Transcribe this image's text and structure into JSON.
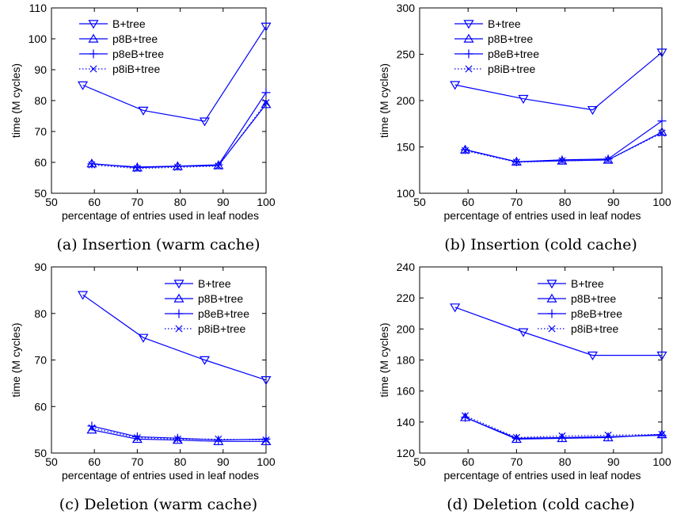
{
  "chart_data": [
    {
      "type": "line",
      "caption": "(a) Insertion (warm cache)",
      "xlabel": "percentage of entries used in leaf nodes",
      "ylabel": "time (M cycles)",
      "xlim": [
        50,
        100
      ],
      "ylim": [
        50,
        110
      ],
      "xticks": [
        50,
        60,
        70,
        80,
        90,
        100
      ],
      "yticks": [
        50,
        60,
        70,
        80,
        90,
        100,
        110
      ],
      "grid": false,
      "legend": "top-center",
      "color": "#0000ff",
      "series": [
        {
          "name": "B+tree",
          "marker": "triangle-down",
          "dash": "solid",
          "x": [
            57.3,
            71.4,
            85.7,
            100
          ],
          "y": [
            85,
            76.8,
            73.3,
            104
          ]
        },
        {
          "name": "p8B+tree",
          "marker": "triangle-up",
          "dash": "solid",
          "x": [
            59.4,
            70,
            79.4,
            88.9,
            100
          ],
          "y": [
            59.6,
            58.3,
            58.7,
            59,
            78.8
          ]
        },
        {
          "name": "p8eB+tree",
          "marker": "plus",
          "dash": "solid",
          "x": [
            59.4,
            70,
            79.4,
            88.9,
            100
          ],
          "y": [
            59.5,
            58.5,
            58.8,
            59.2,
            82.6
          ]
        },
        {
          "name": "p8iB+tree",
          "marker": "x",
          "dash": "dotted",
          "x": [
            59.4,
            70,
            79.4,
            88.9,
            100
          ],
          "y": [
            59.2,
            58,
            58.4,
            58.8,
            79.3
          ]
        }
      ]
    },
    {
      "type": "line",
      "caption": "(b) Insertion (cold cache)",
      "xlabel": "percentage of entries used in leaf nodes",
      "ylabel": "time (M cycles)",
      "xlim": [
        50,
        100
      ],
      "ylim": [
        100,
        300
      ],
      "xticks": [
        50,
        60,
        70,
        80,
        90,
        100
      ],
      "yticks": [
        100,
        150,
        200,
        250,
        300
      ],
      "grid": false,
      "legend": "top-center",
      "color": "#0000ff",
      "series": [
        {
          "name": "B+tree",
          "marker": "triangle-down",
          "dash": "solid",
          "x": [
            57.3,
            71.4,
            85.7,
            100
          ],
          "y": [
            217,
            202,
            190,
            252
          ]
        },
        {
          "name": "p8B+tree",
          "marker": "triangle-up",
          "dash": "solid",
          "x": [
            59.4,
            70,
            79.4,
            88.9,
            100
          ],
          "y": [
            147,
            134,
            135,
            136,
            166
          ]
        },
        {
          "name": "p8eB+tree",
          "marker": "plus",
          "dash": "solid",
          "x": [
            59.4,
            70,
            79.4,
            88.9,
            100
          ],
          "y": [
            147,
            134,
            136,
            137,
            178
          ]
        },
        {
          "name": "p8iB+tree",
          "marker": "x",
          "dash": "dotted",
          "x": [
            59.4,
            70,
            79.4,
            88.9,
            100
          ],
          "y": [
            146,
            133.5,
            135,
            136,
            165
          ]
        }
      ]
    },
    {
      "type": "line",
      "caption": "(c) Deletion (warm cache)",
      "xlabel": "percentage of entries used in leaf nodes",
      "ylabel": "time (M cycles)",
      "xlim": [
        50,
        100
      ],
      "ylim": [
        50,
        90
      ],
      "xticks": [
        50,
        60,
        70,
        80,
        90,
        100
      ],
      "yticks": [
        50,
        60,
        70,
        80,
        90
      ],
      "grid": false,
      "legend": "top-right",
      "color": "#0000ff",
      "series": [
        {
          "name": "B+tree",
          "marker": "triangle-down",
          "dash": "solid",
          "x": [
            57.3,
            71.4,
            85.7,
            100
          ],
          "y": [
            84,
            74.8,
            70,
            65.7
          ]
        },
        {
          "name": "p8B+tree",
          "marker": "triangle-up",
          "dash": "solid",
          "x": [
            59.4,
            70,
            79.4,
            88.9,
            100
          ],
          "y": [
            55,
            53,
            52.8,
            52.5,
            52.5
          ]
        },
        {
          "name": "p8eB+tree",
          "marker": "plus",
          "dash": "solid",
          "x": [
            59.4,
            70,
            79.4,
            88.9,
            100
          ],
          "y": [
            55.8,
            53.5,
            53.2,
            52.8,
            53
          ]
        },
        {
          "name": "p8iB+tree",
          "marker": "x",
          "dash": "dotted",
          "x": [
            59.4,
            70,
            79.4,
            88.9,
            100
          ],
          "y": [
            55.4,
            53.3,
            53,
            53,
            52.8
          ]
        }
      ]
    },
    {
      "type": "line",
      "caption": "(d) Deletion (cold cache)",
      "xlabel": "percentage of entries used in leaf nodes",
      "ylabel": "time (M cycles)",
      "xlim": [
        50,
        100
      ],
      "ylim": [
        120,
        240
      ],
      "xticks": [
        50,
        60,
        70,
        80,
        90,
        100
      ],
      "yticks": [
        120,
        140,
        160,
        180,
        200,
        220,
        240
      ],
      "grid": false,
      "legend": "top-right",
      "color": "#0000ff",
      "series": [
        {
          "name": "B+tree",
          "marker": "triangle-down",
          "dash": "solid",
          "x": [
            57.3,
            71.4,
            85.7,
            100
          ],
          "y": [
            214,
            198,
            183,
            183
          ]
        },
        {
          "name": "p8B+tree",
          "marker": "triangle-up",
          "dash": "solid",
          "x": [
            59.4,
            70,
            79.4,
            88.9,
            100
          ],
          "y": [
            143,
            129,
            129.5,
            130,
            132
          ]
        },
        {
          "name": "p8eB+tree",
          "marker": "plus",
          "dash": "solid",
          "x": [
            59.4,
            70,
            79.4,
            88.9,
            100
          ],
          "y": [
            143,
            129.5,
            130,
            130.5,
            131.5
          ]
        },
        {
          "name": "p8iB+tree",
          "marker": "x",
          "dash": "dotted",
          "x": [
            59.4,
            70,
            79.4,
            88.9,
            100
          ],
          "y": [
            144,
            130,
            131,
            131.5,
            132
          ]
        }
      ]
    }
  ]
}
